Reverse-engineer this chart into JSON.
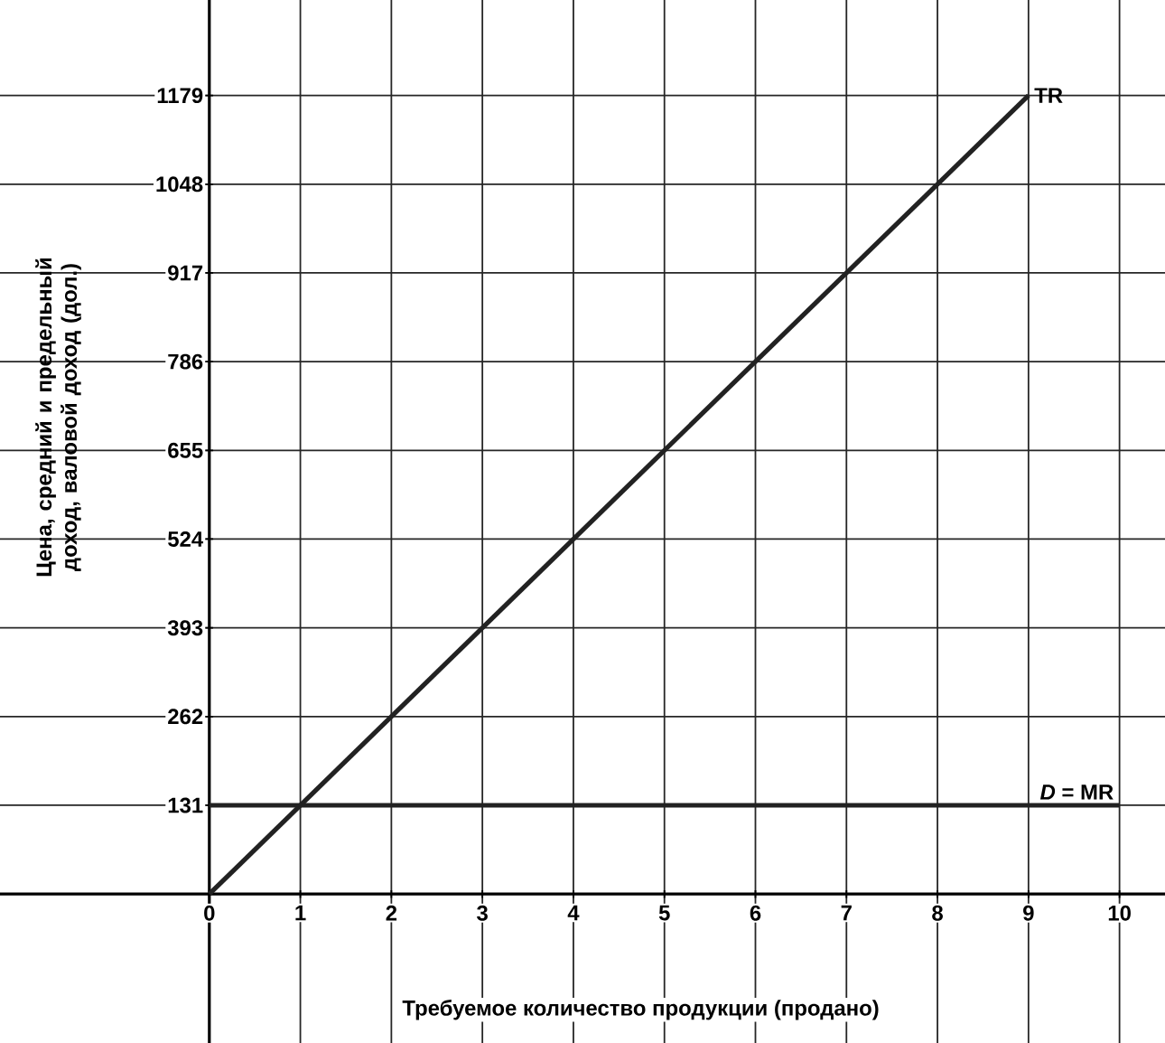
{
  "chart_data": {
    "type": "line",
    "xlabel": "Требуемое количество продукции (продано)",
    "ylabel": "Цена, средний и предельный доход, валовой доход (дол.)",
    "series": [
      {
        "name": "TR",
        "color": "#222222",
        "x": [
          0,
          9
        ],
        "values": [
          0,
          1179
        ]
      },
      {
        "name": "*D* = MR",
        "color": "#222222",
        "x": [
          0,
          10
        ],
        "values": [
          131,
          131
        ]
      }
    ],
    "xlim": [
      -2.3,
      10.5
    ],
    "ylim": [
      -220,
      1320
    ],
    "xticks": [
      0,
      1,
      2,
      3,
      4,
      5,
      6,
      7,
      8,
      9,
      10
    ],
    "yticks": [
      131,
      262,
      393,
      524,
      655,
      786,
      917,
      1048,
      1179
    ],
    "grid": true,
    "marker": "none",
    "line_style": "solid",
    "legend": false
  }
}
